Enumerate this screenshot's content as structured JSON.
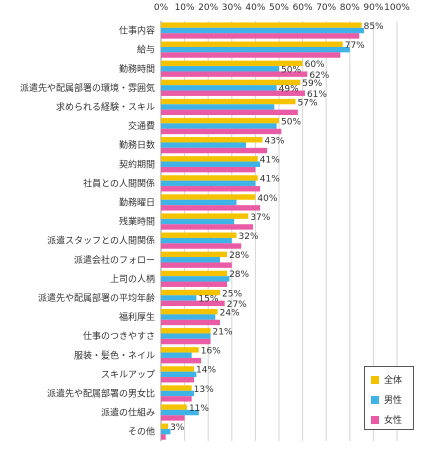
{
  "chart_data": {
    "type": "bar",
    "orientation": "horizontal",
    "xlim": [
      0,
      100
    ],
    "x_ticks": [
      "0%",
      "10%",
      "20%",
      "30%",
      "40%",
      "50%",
      "60%",
      "70%",
      "80%",
      "90%",
      "100%"
    ],
    "grid": true,
    "legend_position": "bottom-right",
    "categories": [
      "仕事内容",
      "給与",
      "勤務時間",
      "派遣先や配属部署の環境・雰囲気",
      "求められる経験・スキル",
      "交通費",
      "勤務日数",
      "契約期間",
      "社員との人間関係",
      "勤務曜日",
      "残業時間",
      "派遣スタッフとの人間関係",
      "派遣会社のフォロー",
      "上司の人柄",
      "派遣先や配属部署の平均年齢",
      "福利厚生",
      "仕事のつきやすさ",
      "服装・髪色・ネイル",
      "スキルアップ",
      "派遣先や配属部署の男女比",
      "派遣の仕組み",
      "その他"
    ],
    "series": [
      {
        "name": "全体",
        "color": "#f5c200",
        "values": [
          85,
          77,
          60,
          59,
          57,
          50,
          43,
          41,
          41,
          40,
          37,
          32,
          28,
          28,
          25,
          24,
          21,
          16,
          14,
          13,
          11,
          3
        ],
        "labels": [
          "85%",
          "77%",
          "60%",
          "59%",
          "57%",
          "50%",
          "43%",
          "41%",
          "41%",
          "40%",
          "37%",
          "32%",
          "28%",
          "28%",
          "25%",
          "24%",
          "21%",
          "16%",
          "14%",
          "13%",
          "11%",
          "3%"
        ]
      },
      {
        "name": "男性",
        "color": "#3fb2e6",
        "values": [
          86,
          80,
          50,
          49,
          48,
          49,
          36,
          42,
          40,
          32,
          31,
          30,
          25,
          29,
          15,
          23,
          21,
          13,
          15,
          14,
          16,
          4
        ],
        "labels": [
          "",
          "",
          "50%",
          "49%",
          "",
          "",
          "",
          "",
          "",
          "",
          "",
          "",
          "",
          "",
          "15%",
          "",
          "",
          "",
          "",
          "",
          "",
          ""
        ]
      },
      {
        "name": "女性",
        "color": "#ea5ba6",
        "values": [
          84,
          76,
          62,
          61,
          58,
          51,
          45,
          40,
          42,
          42,
          39,
          34,
          30,
          28,
          27,
          25,
          21,
          17,
          14,
          13,
          10,
          2
        ],
        "labels": [
          "",
          "",
          "62%",
          "61%",
          "",
          "",
          "",
          "",
          "",
          "",
          "",
          "",
          "",
          "",
          "27%",
          "",
          "",
          "",
          "",
          "",
          "",
          ""
        ]
      }
    ]
  }
}
